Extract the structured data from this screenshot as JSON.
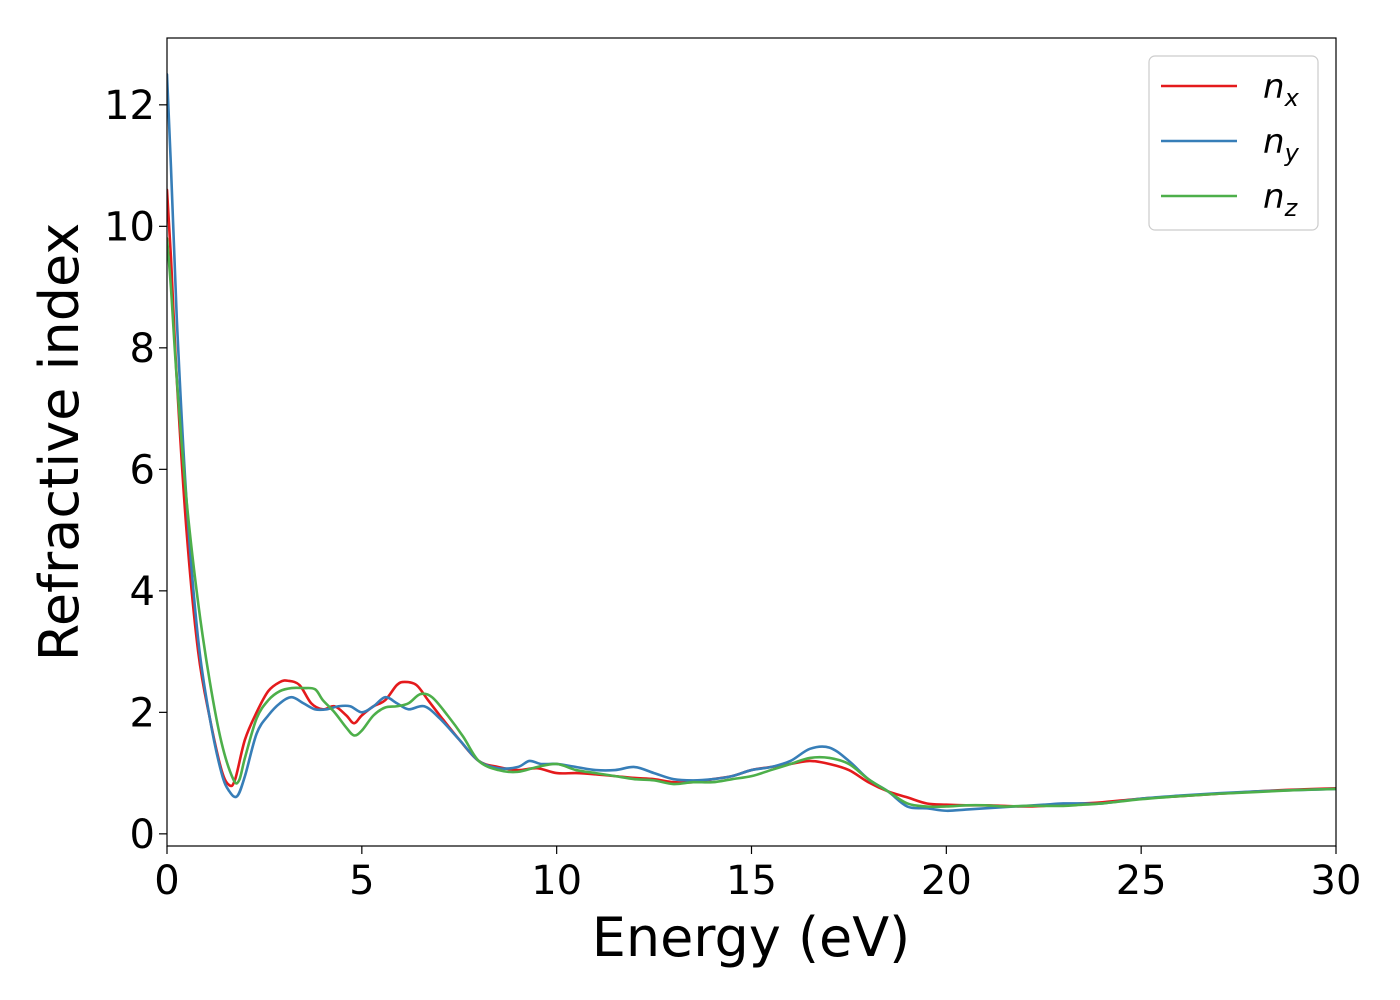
{
  "chart_data": {
    "type": "line",
    "title": "",
    "xlabel": "Energy (eV)",
    "ylabel": "Refractive index",
    "xlim": [
      0,
      30
    ],
    "ylim": [
      -0.2,
      13.1
    ],
    "xticks": [
      0,
      5,
      10,
      15,
      20,
      25,
      30
    ],
    "yticks": [
      0,
      2,
      4,
      6,
      8,
      10,
      12
    ],
    "grid": false,
    "legend_position": "top-right",
    "series": [
      {
        "name": "n",
        "subscript": "x",
        "color": "#e41a1c",
        "x": [
          0.0,
          0.1,
          0.25,
          0.5,
          0.8,
          1.1,
          1.4,
          1.6,
          1.75,
          2.0,
          2.3,
          2.6,
          2.9,
          3.1,
          3.4,
          3.7,
          4.0,
          4.3,
          4.6,
          4.8,
          5.0,
          5.3,
          5.6,
          5.9,
          6.1,
          6.4,
          6.7,
          7.0,
          7.5,
          8.0,
          8.5,
          9.0,
          9.5,
          10.0,
          10.5,
          11.0,
          11.5,
          12.0,
          12.5,
          13.0,
          13.5,
          14.0,
          14.5,
          15.0,
          15.5,
          16.0,
          16.5,
          17.0,
          17.5,
          18.0,
          18.5,
          19.0,
          19.5,
          20.0,
          20.5,
          21.0,
          21.5,
          22.0,
          22.5,
          23.0,
          23.5,
          24.0,
          25.0,
          26.0,
          27.0,
          28.0,
          29.0,
          30.0
        ],
        "y": [
          10.6,
          9.5,
          7.5,
          5.0,
          3.0,
          1.9,
          1.05,
          0.8,
          0.9,
          1.55,
          2.0,
          2.35,
          2.5,
          2.52,
          2.45,
          2.15,
          2.05,
          2.1,
          1.95,
          1.82,
          1.95,
          2.1,
          2.2,
          2.45,
          2.5,
          2.45,
          2.2,
          1.95,
          1.55,
          1.2,
          1.1,
          1.05,
          1.08,
          1.0,
          1.0,
          0.98,
          0.95,
          0.92,
          0.9,
          0.85,
          0.85,
          0.9,
          0.95,
          1.05,
          1.1,
          1.15,
          1.2,
          1.15,
          1.05,
          0.85,
          0.7,
          0.6,
          0.5,
          0.48,
          0.47,
          0.47,
          0.46,
          0.45,
          0.46,
          0.48,
          0.5,
          0.52,
          0.58,
          0.62,
          0.66,
          0.7,
          0.73,
          0.75
        ]
      },
      {
        "name": "n",
        "subscript": "y",
        "color": "#377eb8",
        "x": [
          0.0,
          0.1,
          0.25,
          0.5,
          0.8,
          1.1,
          1.4,
          1.6,
          1.8,
          2.0,
          2.3,
          2.6,
          2.9,
          3.2,
          3.5,
          3.8,
          4.1,
          4.4,
          4.7,
          5.0,
          5.3,
          5.6,
          5.9,
          6.2,
          6.6,
          7.0,
          7.5,
          8.0,
          8.5,
          9.0,
          9.3,
          9.6,
          10.0,
          10.5,
          11.0,
          11.5,
          12.0,
          12.5,
          13.0,
          13.5,
          14.0,
          14.5,
          15.0,
          15.5,
          16.0,
          16.5,
          17.0,
          17.5,
          18.0,
          18.5,
          19.0,
          19.5,
          20.0,
          20.5,
          21.0,
          21.5,
          22.0,
          22.5,
          23.0,
          23.5,
          24.0,
          25.0,
          26.0,
          27.0,
          28.0,
          29.0,
          30.0
        ],
        "y": [
          12.5,
          11.0,
          8.5,
          5.5,
          3.2,
          1.9,
          1.0,
          0.7,
          0.62,
          0.95,
          1.65,
          1.95,
          2.15,
          2.25,
          2.15,
          2.05,
          2.05,
          2.1,
          2.1,
          2.0,
          2.1,
          2.25,
          2.15,
          2.05,
          2.1,
          1.9,
          1.55,
          1.2,
          1.08,
          1.1,
          1.2,
          1.15,
          1.15,
          1.1,
          1.05,
          1.05,
          1.1,
          1.0,
          0.9,
          0.88,
          0.9,
          0.95,
          1.05,
          1.1,
          1.2,
          1.4,
          1.42,
          1.2,
          0.9,
          0.7,
          0.45,
          0.42,
          0.38,
          0.4,
          0.42,
          0.44,
          0.46,
          0.48,
          0.5,
          0.5,
          0.5,
          0.58,
          0.63,
          0.67,
          0.7,
          0.72,
          0.74
        ]
      },
      {
        "name": "n",
        "subscript": "z",
        "color": "#4daf4a",
        "x": [
          0.0,
          0.1,
          0.25,
          0.5,
          0.8,
          1.1,
          1.4,
          1.7,
          1.85,
          2.0,
          2.3,
          2.6,
          2.9,
          3.2,
          3.5,
          3.8,
          4.0,
          4.3,
          4.6,
          4.8,
          5.0,
          5.3,
          5.6,
          5.9,
          6.2,
          6.5,
          6.8,
          7.2,
          7.6,
          8.0,
          8.5,
          9.0,
          9.5,
          10.0,
          10.5,
          11.0,
          11.5,
          12.0,
          12.5,
          13.0,
          13.5,
          14.0,
          14.5,
          15.0,
          15.5,
          16.0,
          16.5,
          17.0,
          17.5,
          18.0,
          18.5,
          19.0,
          19.5,
          20.0,
          20.5,
          21.0,
          21.5,
          22.0,
          22.5,
          23.0,
          23.5,
          24.0,
          25.0,
          26.0,
          27.0,
          28.0,
          29.0,
          30.0
        ],
        "y": [
          9.8,
          9.0,
          7.5,
          5.5,
          3.8,
          2.5,
          1.5,
          0.9,
          0.88,
          1.25,
          1.9,
          2.2,
          2.35,
          2.4,
          2.4,
          2.38,
          2.2,
          2.0,
          1.75,
          1.62,
          1.7,
          1.95,
          2.08,
          2.1,
          2.15,
          2.3,
          2.25,
          1.95,
          1.6,
          1.2,
          1.05,
          1.02,
          1.1,
          1.15,
          1.05,
          1.0,
          0.95,
          0.9,
          0.88,
          0.82,
          0.85,
          0.85,
          0.9,
          0.95,
          1.05,
          1.15,
          1.25,
          1.25,
          1.15,
          0.9,
          0.7,
          0.5,
          0.45,
          0.45,
          0.47,
          0.47,
          0.45,
          0.46,
          0.46,
          0.46,
          0.48,
          0.5,
          0.57,
          0.62,
          0.66,
          0.69,
          0.72,
          0.74
        ]
      }
    ]
  }
}
